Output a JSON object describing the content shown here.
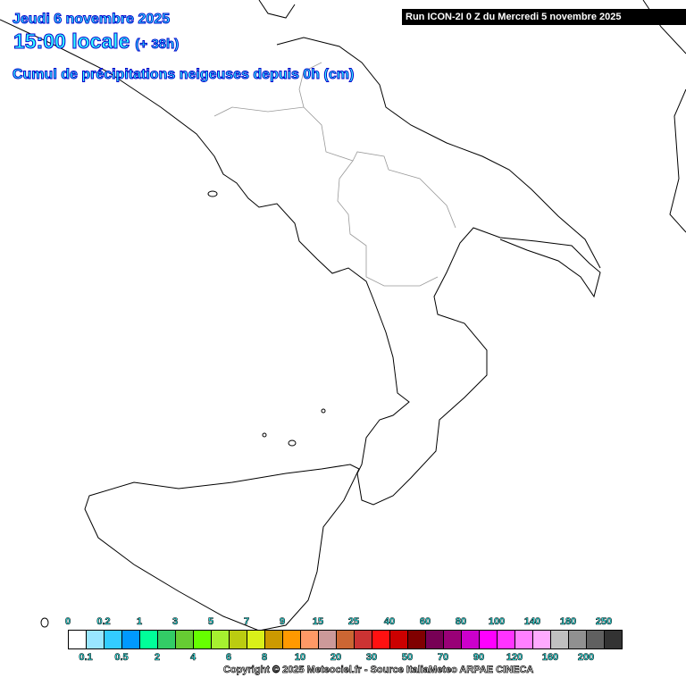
{
  "header": {
    "date": "Jeudi 6 novembre 2025",
    "time": "15:00 locale",
    "lead": "(+ 38h)",
    "parameter": "Cumul de précipitations neigeuses depuis 0h (cm)",
    "run": "Run ICON-2I 0 Z du Mercredi 5 novembre 2025"
  },
  "legend": {
    "colors": [
      "#ffffff",
      "#99e6ff",
      "#33ccff",
      "#0099ff",
      "#00ff99",
      "#33cc66",
      "#66cc33",
      "#66ff00",
      "#a6f030",
      "#bbcc11",
      "#d9f019",
      "#cc9900",
      "#ff9900",
      "#ff9966",
      "#cc9999",
      "#cc6633",
      "#cc3333",
      "#ff1111",
      "#cc0000",
      "#800000",
      "#770055",
      "#990077",
      "#cc00cc",
      "#ff00ff",
      "#ff33ff",
      "#ff80ff",
      "#ffaaff",
      "#c0c0c0",
      "#909090",
      "#606060",
      "#333333"
    ],
    "top_labels": [
      "0",
      "0.2",
      "1",
      "3",
      "5",
      "7",
      "9",
      "15",
      "25",
      "40",
      "60",
      "80",
      "100",
      "140",
      "180",
      "250"
    ],
    "bottom_labels": [
      "0.1",
      "0.5",
      "2",
      "4",
      "6",
      "8",
      "10",
      "20",
      "30",
      "50",
      "70",
      "90",
      "120",
      "160",
      "200"
    ]
  },
  "copyright": "Copyright © 2025 Meteociel.fr - Source ItaliaMeteo ARPAE CINECA"
}
